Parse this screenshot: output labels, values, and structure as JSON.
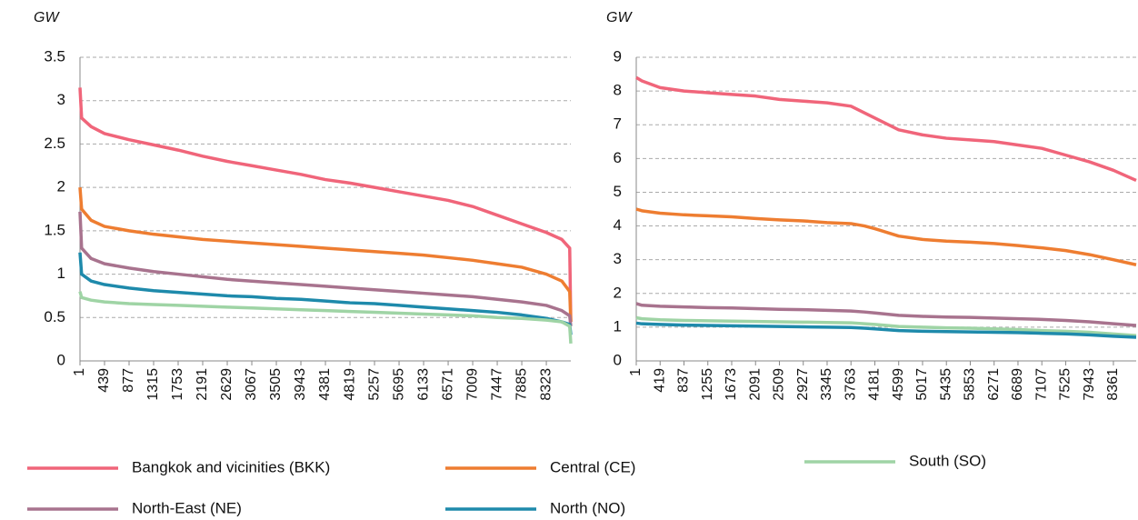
{
  "chart_data": [
    {
      "type": "line",
      "ylabel": "GW",
      "xlim": [
        1,
        8760
      ],
      "ylim": [
        0,
        3.5
      ],
      "yticks": [
        0,
        0.5,
        1,
        1.5,
        2,
        2.5,
        3,
        3.5
      ],
      "grid": true,
      "xticks": [
        1,
        439,
        877,
        1315,
        1753,
        2191,
        2629,
        3067,
        3505,
        3943,
        4381,
        4819,
        5257,
        5695,
        6133,
        6571,
        7009,
        7447,
        7885,
        8323
      ],
      "x": [
        1,
        30,
        200,
        439,
        877,
        1315,
        1753,
        2191,
        2629,
        3067,
        3505,
        3943,
        4381,
        4819,
        5257,
        5695,
        6133,
        6571,
        7009,
        7447,
        7885,
        8323,
        8600,
        8740,
        8760
      ],
      "series": [
        {
          "name": "Bangkok and vicinities (BKK)",
          "color": "#f0657a",
          "values": [
            3.15,
            2.8,
            2.7,
            2.62,
            2.55,
            2.49,
            2.43,
            2.36,
            2.3,
            2.25,
            2.2,
            2.15,
            2.09,
            2.05,
            2.0,
            1.95,
            1.9,
            1.85,
            1.78,
            1.68,
            1.58,
            1.48,
            1.4,
            1.3,
            0.45
          ]
        },
        {
          "name": "Central (CE)",
          "color": "#ee7d31",
          "values": [
            2.0,
            1.75,
            1.62,
            1.55,
            1.5,
            1.46,
            1.43,
            1.4,
            1.38,
            1.36,
            1.34,
            1.32,
            1.3,
            1.28,
            1.26,
            1.24,
            1.22,
            1.19,
            1.16,
            1.12,
            1.08,
            1.0,
            0.92,
            0.8,
            0.45
          ]
        },
        {
          "name": "North-East (NE)",
          "color": "#a8738e",
          "values": [
            1.72,
            1.3,
            1.18,
            1.12,
            1.07,
            1.03,
            1.0,
            0.97,
            0.94,
            0.92,
            0.9,
            0.88,
            0.86,
            0.84,
            0.82,
            0.8,
            0.78,
            0.76,
            0.74,
            0.71,
            0.68,
            0.64,
            0.58,
            0.52,
            0.4
          ]
        },
        {
          "name": "North (NO)",
          "color": "#1e8aab",
          "values": [
            1.25,
            1.0,
            0.92,
            0.88,
            0.84,
            0.81,
            0.79,
            0.77,
            0.75,
            0.74,
            0.72,
            0.71,
            0.69,
            0.67,
            0.66,
            0.64,
            0.62,
            0.6,
            0.58,
            0.56,
            0.53,
            0.49,
            0.45,
            0.42,
            0.3
          ]
        },
        {
          "name": "South (SO)",
          "color": "#9fd4a5",
          "values": [
            0.8,
            0.73,
            0.7,
            0.68,
            0.66,
            0.65,
            0.64,
            0.63,
            0.62,
            0.61,
            0.6,
            0.59,
            0.58,
            0.57,
            0.56,
            0.55,
            0.54,
            0.53,
            0.52,
            0.5,
            0.49,
            0.47,
            0.45,
            0.4,
            0.2
          ]
        }
      ]
    },
    {
      "type": "line",
      "ylabel": "GW",
      "xlim": [
        1,
        8760
      ],
      "ylim": [
        0,
        9
      ],
      "yticks": [
        0,
        1,
        2,
        3,
        4,
        5,
        6,
        7,
        8,
        9
      ],
      "grid": true,
      "xticks": [
        1,
        419,
        837,
        1255,
        1673,
        2091,
        2509,
        2927,
        3345,
        3763,
        4181,
        4599,
        5017,
        5435,
        5853,
        6271,
        6689,
        7107,
        7525,
        7943,
        8361
      ],
      "x": [
        1,
        100,
        419,
        837,
        1255,
        1673,
        2091,
        2509,
        2927,
        3345,
        3763,
        4000,
        4181,
        4599,
        5017,
        5435,
        5853,
        6271,
        6689,
        7107,
        7525,
        7943,
        8361,
        8760
      ],
      "series": [
        {
          "name": "Bangkok and vicinities (BKK)",
          "color": "#f0657a",
          "values": [
            8.4,
            8.3,
            8.1,
            8.0,
            7.95,
            7.9,
            7.85,
            7.75,
            7.7,
            7.65,
            7.55,
            7.35,
            7.2,
            6.85,
            6.7,
            6.6,
            6.55,
            6.5,
            6.4,
            6.3,
            6.1,
            5.9,
            5.65,
            5.35
          ]
        },
        {
          "name": "Central (CE)",
          "color": "#ee7d31",
          "values": [
            4.5,
            4.45,
            4.38,
            4.33,
            4.3,
            4.27,
            4.22,
            4.18,
            4.15,
            4.1,
            4.07,
            4.0,
            3.92,
            3.7,
            3.6,
            3.55,
            3.52,
            3.48,
            3.42,
            3.35,
            3.27,
            3.15,
            3.0,
            2.85
          ]
        },
        {
          "name": "North-East (NE)",
          "color": "#a8738e",
          "values": [
            1.7,
            1.65,
            1.62,
            1.6,
            1.58,
            1.57,
            1.55,
            1.53,
            1.52,
            1.5,
            1.48,
            1.45,
            1.42,
            1.35,
            1.32,
            1.3,
            1.29,
            1.27,
            1.25,
            1.23,
            1.2,
            1.16,
            1.1,
            1.05
          ]
        },
        {
          "name": "South (SO)",
          "color": "#9fd4a5",
          "values": [
            1.28,
            1.25,
            1.22,
            1.2,
            1.19,
            1.18,
            1.17,
            1.16,
            1.15,
            1.14,
            1.13,
            1.1,
            1.08,
            1.02,
            1.0,
            0.98,
            0.97,
            0.95,
            0.93,
            0.9,
            0.88,
            0.85,
            0.8,
            0.75
          ]
        },
        {
          "name": "North (NO)",
          "color": "#1e8aab",
          "values": [
            1.12,
            1.1,
            1.08,
            1.06,
            1.05,
            1.04,
            1.03,
            1.02,
            1.01,
            1.0,
            0.99,
            0.97,
            0.95,
            0.9,
            0.88,
            0.87,
            0.86,
            0.85,
            0.84,
            0.82,
            0.8,
            0.77,
            0.73,
            0.7
          ]
        }
      ]
    }
  ]
}
